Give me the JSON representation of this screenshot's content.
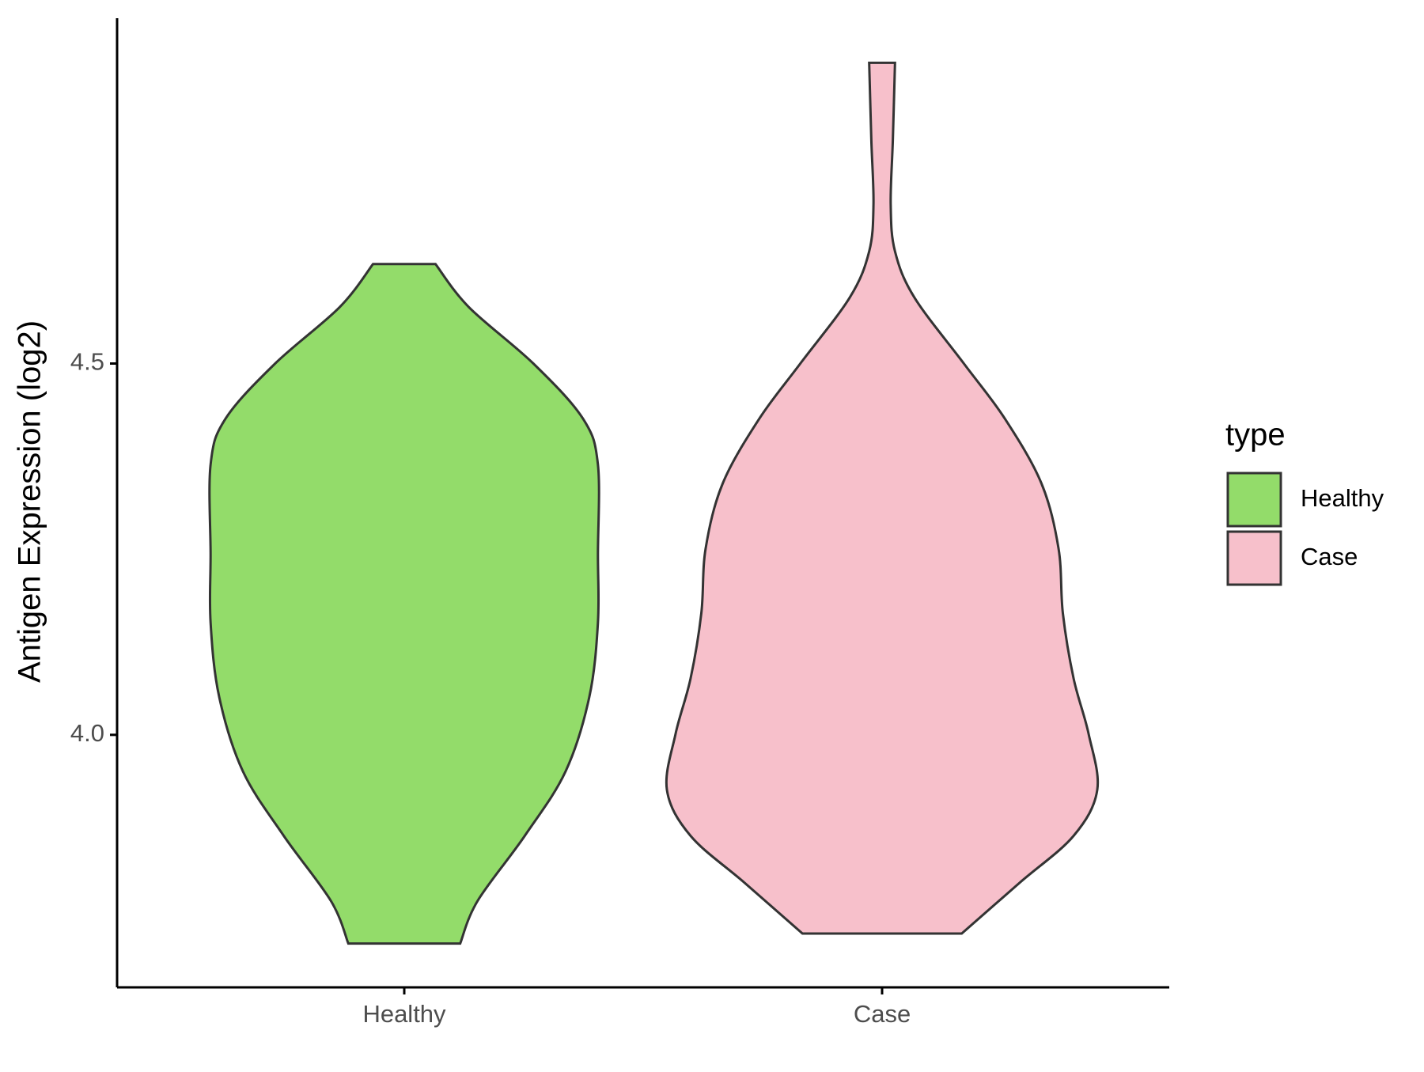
{
  "chart_data": {
    "type": "violin",
    "y_label": "Antigen Expression (log2)",
    "legend_title": "type",
    "legend": "right",
    "categories": [
      "Healthy",
      "Case"
    ],
    "ylim": [
      3.66,
      4.965
    ],
    "yticks": [
      {
        "value": 4,
        "label": "4.0"
      },
      {
        "value": 4.5,
        "label": "4.5"
      }
    ],
    "series": [
      {
        "name": "Healthy",
        "color": "#93dc6a",
        "y": [
          4.634,
          4.576,
          4.5,
          4.426,
          4.364,
          4.243,
          4.151,
          4.051,
          3.951,
          3.864,
          3.776,
          3.719
        ],
        "density": [
          0.145,
          0.3,
          0.6,
          0.83,
          0.9,
          0.9,
          0.9,
          0.86,
          0.75,
          0.56,
          0.34,
          0.26
        ]
      },
      {
        "name": "Case",
        "color": "#f7c0cb",
        "y": [
          4.905,
          4.801,
          4.714,
          4.651,
          4.589,
          4.5,
          4.426,
          4.339,
          4.251,
          4.164,
          4.076,
          4.001,
          3.926,
          3.864,
          3.801,
          3.7325
        ],
        "density": [
          0.06,
          0.05,
          0.04,
          0.06,
          0.15,
          0.38,
          0.57,
          0.74,
          0.82,
          0.84,
          0.89,
          0.96,
          1.0,
          0.89,
          0.64,
          0.37
        ]
      }
    ]
  }
}
